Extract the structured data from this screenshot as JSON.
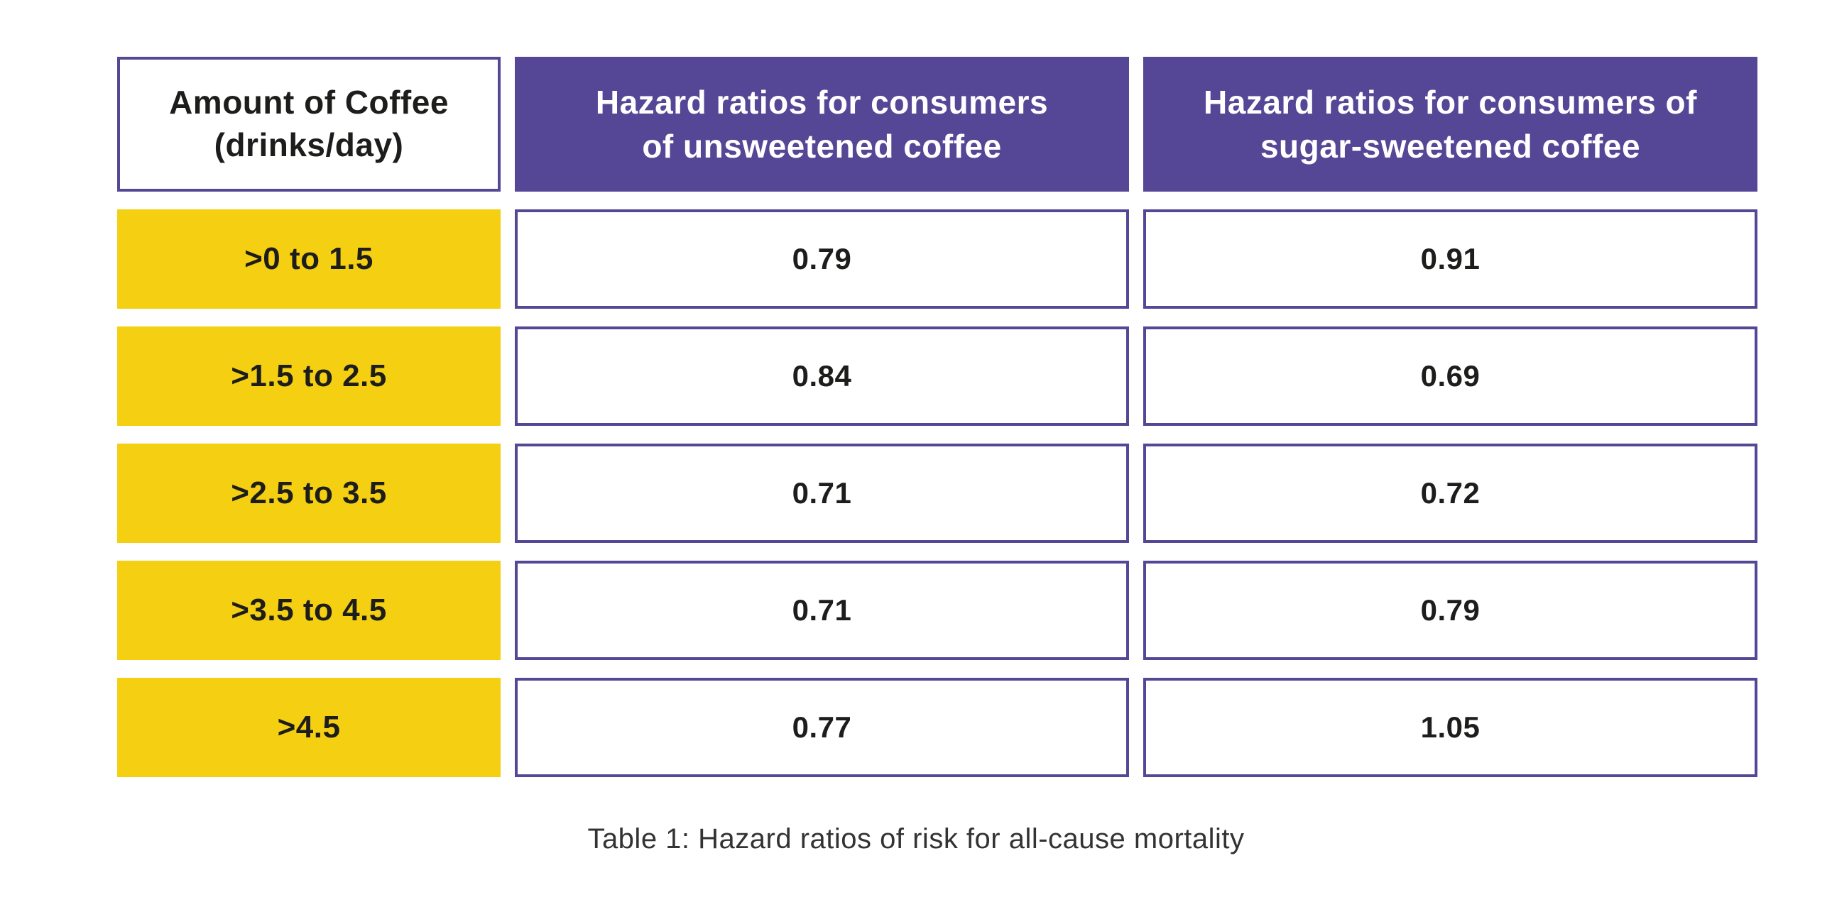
{
  "table": {
    "headers": [
      {
        "line1": "Amount of Coffee",
        "line2": "(drinks/day)"
      },
      {
        "line1": "Hazard ratios for consumers",
        "line2": "of unsweetened coffee"
      },
      {
        "line1": "Hazard ratios for consumers of",
        "line2": "sugar-sweetened coffee"
      }
    ],
    "rows": [
      {
        "amount": ">0 to 1.5",
        "unsweetened": "0.79",
        "sugar_sweetened": "0.91"
      },
      {
        "amount": ">1.5 to 2.5",
        "unsweetened": "0.84",
        "sugar_sweetened": "0.69"
      },
      {
        "amount": ">2.5 to 3.5",
        "unsweetened": "0.71",
        "sugar_sweetened": "0.72"
      },
      {
        "amount": ">3.5 to 4.5",
        "unsweetened": "0.71",
        "sugar_sweetened": "0.79"
      },
      {
        "amount": ">4.5",
        "unsweetened": "0.77",
        "sugar_sweetened": "1.05"
      }
    ],
    "caption": "Table 1: Hazard ratios of risk for all-cause mortality"
  },
  "colors": {
    "purple": "#554796",
    "yellow": "#f5cf12",
    "text_dark": "#1d1d1b",
    "header_text": "#ffffff",
    "caption_text": "#333333",
    "background": "#ffffff"
  },
  "chart_data": {
    "type": "table",
    "title": "Table 1: Hazard ratios of risk for all-cause mortality",
    "columns": [
      "Amount of Coffee (drinks/day)",
      "Hazard ratios for consumers of unsweetened coffee",
      "Hazard ratios for consumers of sugar-sweetened coffee"
    ],
    "categories": [
      ">0 to 1.5",
      ">1.5 to 2.5",
      ">2.5 to 3.5",
      ">3.5 to 4.5",
      ">4.5"
    ],
    "series": [
      {
        "name": "Hazard ratios for consumers of unsweetened coffee",
        "values": [
          0.79,
          0.84,
          0.71,
          0.71,
          0.77
        ]
      },
      {
        "name": "Hazard ratios for consumers of sugar-sweetened coffee",
        "values": [
          0.91,
          0.69,
          0.72,
          0.79,
          1.05
        ]
      }
    ]
  }
}
